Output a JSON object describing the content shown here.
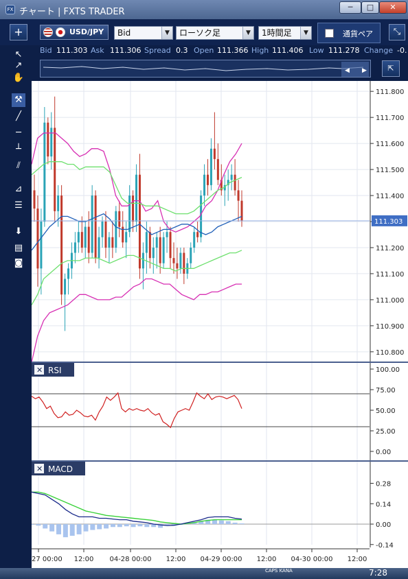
{
  "window": {
    "title": "チャート | FXTS TRADER",
    "icon": "FX",
    "min": "─",
    "max": "□",
    "close": "✕"
  },
  "toolbar": {
    "add_label": "+",
    "symbol": "USD/JPY",
    "price_type": "Bid",
    "chart_type": "ローソク足",
    "timeframe": "1時間足",
    "pair_tab": "通貨ペア",
    "expand_label": "⤡"
  },
  "quote": {
    "bid_label": "Bid",
    "bid": "111.303",
    "ask_label": "Ask",
    "ask": "111.306",
    "spread_label": "Spread",
    "spread": "0.3",
    "open_label": "Open",
    "open": "111.366",
    "high_label": "High",
    "high": "111.406",
    "low_label": "Low",
    "low": "111.278",
    "change_label": "Change",
    "change": "-0."
  },
  "rsi_panel": {
    "label": "RSI"
  },
  "macd_panel": {
    "label": "MACD"
  },
  "taskbar": {
    "clock": "7:28",
    "caps": "CAPS KANA"
  },
  "chart_data": [
    {
      "type": "candlestick",
      "title": "",
      "price_axis_ticks": [
        "111.800",
        "111.700",
        "111.600",
        "111.500",
        "111.400",
        "111.300",
        "111.200",
        "111.100",
        "111.000",
        "110.900",
        "110.800"
      ],
      "ylim": [
        110.76,
        111.84
      ],
      "current_price": "111.303",
      "x_ticks": [
        "27 00:00",
        "12:00",
        "04-28 00:00",
        "12:00",
        "04-29 00:00",
        "12:00",
        "04-30 00:00",
        "12:00"
      ],
      "candles": [
        [
          111.42,
          111.48,
          111.3,
          111.35
        ],
        [
          111.35,
          111.4,
          111.05,
          111.12
        ],
        [
          111.12,
          111.35,
          111.02,
          111.3
        ],
        [
          111.3,
          111.74,
          111.28,
          111.68
        ],
        [
          111.68,
          111.7,
          111.52,
          111.55
        ],
        [
          111.55,
          111.72,
          111.5,
          111.66
        ],
        [
          111.66,
          111.78,
          111.3,
          111.34
        ],
        [
          111.34,
          111.44,
          111.28,
          111.4
        ],
        [
          111.4,
          111.44,
          110.98,
          111.02
        ],
        [
          111.02,
          111.1,
          110.88,
          111.08
        ],
        [
          111.08,
          111.14,
          111.02,
          111.12
        ],
        [
          111.12,
          111.22,
          111.08,
          111.18
        ],
        [
          111.18,
          111.26,
          111.14,
          111.22
        ],
        [
          111.22,
          111.3,
          111.18,
          111.26
        ],
        [
          111.26,
          111.32,
          111.18,
          111.2
        ],
        [
          111.2,
          111.3,
          111.16,
          111.28
        ],
        [
          111.28,
          111.34,
          111.14,
          111.18
        ],
        [
          111.18,
          111.44,
          111.16,
          111.4
        ],
        [
          111.4,
          111.42,
          111.14,
          111.16
        ],
        [
          111.16,
          111.28,
          111.12,
          111.24
        ],
        [
          111.24,
          111.32,
          111.2,
          111.3
        ],
        [
          111.3,
          111.34,
          111.16,
          111.2
        ],
        [
          111.2,
          111.26,
          111.14,
          111.24
        ],
        [
          111.24,
          111.3,
          111.16,
          111.2
        ],
        [
          111.2,
          111.36,
          111.18,
          111.34
        ],
        [
          111.34,
          111.38,
          111.24,
          111.28
        ],
        [
          111.28,
          111.34,
          111.2,
          111.22
        ],
        [
          111.22,
          111.3,
          111.16,
          111.26
        ],
        [
          111.26,
          111.44,
          111.24,
          111.4
        ],
        [
          111.4,
          111.42,
          111.26,
          111.3
        ],
        [
          111.3,
          111.52,
          111.26,
          111.48
        ],
        [
          111.48,
          111.56,
          111.08,
          111.12
        ],
        [
          111.12,
          111.22,
          111.04,
          111.18
        ],
        [
          111.18,
          111.3,
          111.1,
          111.26
        ],
        [
          111.26,
          111.28,
          111.12,
          111.16
        ],
        [
          111.16,
          111.24,
          111.1,
          111.2
        ],
        [
          111.2,
          111.26,
          111.12,
          111.24
        ],
        [
          111.24,
          111.28,
          111.1,
          111.14
        ],
        [
          111.14,
          111.26,
          111.12,
          111.24
        ],
        [
          111.24,
          111.3,
          111.18,
          111.26
        ],
        [
          111.26,
          111.28,
          111.12,
          111.16
        ],
        [
          111.16,
          111.22,
          111.1,
          111.14
        ],
        [
          111.14,
          111.2,
          111.08,
          111.12
        ],
        [
          111.12,
          111.2,
          111.1,
          111.18
        ],
        [
          111.18,
          111.2,
          111.06,
          111.1
        ],
        [
          111.1,
          111.16,
          111.08,
          111.14
        ],
        [
          111.14,
          111.22,
          111.12,
          111.2
        ],
        [
          111.2,
          111.28,
          111.18,
          111.26
        ],
        [
          111.26,
          111.3,
          111.22,
          111.24
        ],
        [
          111.24,
          111.42,
          111.22,
          111.4
        ],
        [
          111.4,
          111.52,
          111.36,
          111.48
        ],
        [
          111.48,
          111.54,
          111.4,
          111.44
        ],
        [
          111.44,
          111.62,
          111.42,
          111.58
        ],
        [
          111.58,
          111.72,
          111.5,
          111.54
        ],
        [
          111.54,
          111.6,
          111.44,
          111.46
        ],
        [
          111.46,
          111.52,
          111.4,
          111.42
        ],
        [
          111.42,
          111.48,
          111.36,
          111.44
        ],
        [
          111.44,
          111.5,
          111.38,
          111.46
        ],
        [
          111.46,
          111.52,
          111.42,
          111.48
        ],
        [
          111.48,
          111.54,
          111.4,
          111.42
        ],
        [
          111.42,
          111.46,
          111.3,
          111.38
        ],
        [
          111.38,
          111.42,
          111.28,
          111.303
        ]
      ],
      "bollinger": {
        "upper": [
          111.52,
          111.62,
          111.64,
          111.64,
          111.64,
          111.62,
          111.6,
          111.57,
          111.55,
          111.56,
          111.58,
          111.58,
          111.57,
          111.5,
          111.4,
          111.36,
          111.36,
          111.38,
          111.38,
          111.34,
          111.35,
          111.38,
          111.3,
          111.27,
          111.26,
          111.27,
          111.28,
          111.3,
          111.32,
          111.36,
          111.38,
          111.42,
          111.48,
          111.53,
          111.56,
          111.6
        ],
        "upper2": [
          111.48,
          111.5,
          111.52,
          111.53,
          111.53,
          111.53,
          111.52,
          111.52,
          111.5,
          111.51,
          111.51,
          111.51,
          111.51,
          111.49,
          111.44,
          111.39,
          111.37,
          111.37,
          111.37,
          111.36,
          111.36,
          111.36,
          111.35,
          111.34,
          111.33,
          111.33,
          111.33,
          111.34,
          111.36,
          111.38,
          111.4,
          111.42,
          111.43,
          111.45,
          111.46,
          111.47
        ],
        "middle": [
          111.19,
          111.22,
          111.25,
          111.28,
          111.3,
          111.32,
          111.32,
          111.31,
          111.3,
          111.3,
          111.31,
          111.32,
          111.33,
          111.31,
          111.28,
          111.27,
          111.27,
          111.28,
          111.29,
          111.27,
          111.25,
          111.26,
          111.27,
          111.27,
          111.28,
          111.29,
          111.29,
          111.28,
          111.26,
          111.25,
          111.26,
          111.28,
          111.29,
          111.3,
          111.31,
          111.32
        ],
        "lower2": [
          110.98,
          111.02,
          111.08,
          111.1,
          111.12,
          111.14,
          111.15,
          111.15,
          111.15,
          111.16,
          111.16,
          111.16,
          111.15,
          111.14,
          111.15,
          111.16,
          111.17,
          111.17,
          111.16,
          111.15,
          111.14,
          111.13,
          111.12,
          111.12,
          111.11,
          111.12,
          111.12,
          111.12,
          111.13,
          111.14,
          111.15,
          111.16,
          111.17,
          111.18,
          111.18,
          111.19
        ],
        "lower": [
          110.76,
          110.86,
          110.92,
          110.95,
          110.96,
          110.97,
          110.98,
          111.0,
          111.02,
          111.02,
          111.01,
          111.0,
          111.0,
          111.0,
          111.01,
          111.01,
          111.03,
          111.05,
          111.06,
          111.08,
          111.08,
          111.07,
          111.06,
          111.06,
          111.04,
          111.02,
          111.01,
          111.0,
          111.02,
          111.02,
          111.03,
          111.03,
          111.04,
          111.05,
          111.06,
          111.06
        ]
      }
    },
    {
      "type": "line",
      "name": "RSI",
      "yticks": [
        "100.00",
        "75.00",
        "50.00",
        "25.00",
        "0.00"
      ],
      "ylim": [
        0,
        100
      ],
      "levels": [
        70,
        30
      ],
      "values": [
        67,
        64,
        66,
        60,
        52,
        55,
        46,
        41,
        42,
        48,
        44,
        45,
        50,
        47,
        43,
        42,
        44,
        38,
        48,
        55,
        66,
        62,
        66,
        71,
        52,
        48,
        52,
        50,
        52,
        50,
        49,
        52,
        47,
        44,
        46,
        36,
        33,
        29,
        40,
        48,
        50,
        52,
        50,
        60,
        71,
        67,
        64,
        70,
        63,
        66,
        67,
        66,
        64,
        66,
        68,
        63,
        52
      ]
    },
    {
      "type": "bar+line",
      "name": "MACD",
      "yticks": [
        "0.28",
        "0.14",
        "0.00",
        "-0.14"
      ],
      "ylim": [
        -0.16,
        0.32
      ],
      "macd": [
        0.22,
        0.21,
        0.2,
        0.17,
        0.14,
        0.1,
        0.07,
        0.05,
        0.05,
        0.05,
        0.04,
        0.04,
        0.035,
        0.03,
        0.03,
        0.02,
        0.015,
        0.01,
        0.0,
        -0.005,
        -0.01,
        -0.008,
        0.0,
        0.01,
        0.02,
        0.03,
        0.045,
        0.05,
        0.05,
        0.05,
        0.04,
        0.035
      ],
      "signal": [
        0.22,
        0.22,
        0.21,
        0.19,
        0.17,
        0.15,
        0.13,
        0.11,
        0.09,
        0.08,
        0.07,
        0.06,
        0.055,
        0.05,
        0.045,
        0.04,
        0.035,
        0.03,
        0.025,
        0.015,
        0.01,
        0.005,
        0.0,
        0.005,
        0.01,
        0.02,
        0.025,
        0.03,
        0.03,
        0.03,
        0.03,
        0.03
      ],
      "hist": [
        0.0,
        -0.01,
        -0.03,
        -0.05,
        -0.07,
        -0.09,
        -0.08,
        -0.07,
        -0.05,
        -0.04,
        -0.035,
        -0.03,
        -0.02,
        -0.02,
        -0.015,
        -0.02,
        -0.015,
        -0.02,
        -0.02,
        -0.025,
        -0.01,
        -0.01,
        0.0,
        0.01,
        0.015,
        0.02,
        0.03,
        0.03,
        0.025,
        0.02,
        0.01,
        0.005
      ]
    }
  ]
}
